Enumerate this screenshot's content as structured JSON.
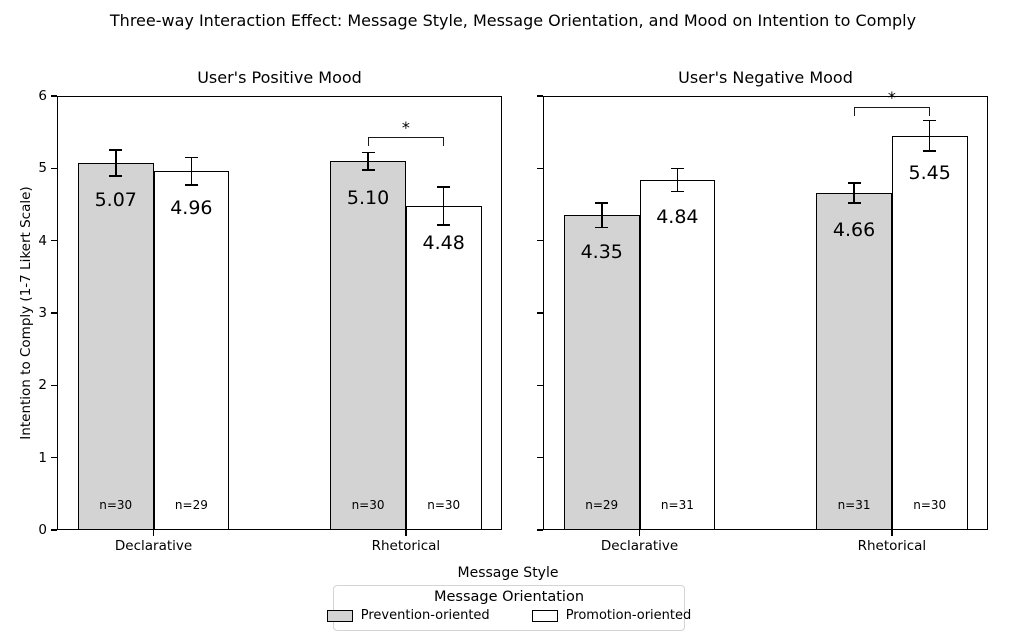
{
  "chart_data": {
    "type": "bar",
    "title": "Three-way Interaction Effect: Message Style, Message Orientation, and Mood on Intention to Comply",
    "xlabel": "Message Style",
    "ylabel": "Intention to Comply (1-7 Likert Scale)",
    "ylim": [
      0,
      6
    ],
    "yticks": [
      0,
      1,
      2,
      3,
      4,
      5,
      6
    ],
    "categories": [
      "Declarative",
      "Rhetorical"
    ],
    "grid": false,
    "legend": {
      "title": "Message Orientation",
      "position": "bottom-center",
      "entries": [
        {
          "label": "Prevention-oriented",
          "color": "#d3d3d3"
        },
        {
          "label": "Promotion-oriented",
          "color": "#ffffff"
        }
      ]
    },
    "panels": [
      {
        "title": "User's Positive Mood",
        "series": [
          {
            "name": "Prevention-oriented",
            "color": "#d3d3d3",
            "values": [
              5.07,
              5.1
            ],
            "errors": [
              0.18,
              0.12
            ],
            "sample_sizes": [
              "n=30",
              "n=30"
            ]
          },
          {
            "name": "Promotion-oriented",
            "color": "#ffffff",
            "values": [
              4.96,
              4.48
            ],
            "errors": [
              0.19,
              0.26
            ],
            "sample_sizes": [
              "n=29",
              "n=30"
            ]
          }
        ],
        "significance": {
          "category_index": 1,
          "label": "*",
          "bracket_y": 5.43
        }
      },
      {
        "title": "User's Negative Mood",
        "series": [
          {
            "name": "Prevention-oriented",
            "color": "#d3d3d3",
            "values": [
              4.35,
              4.66
            ],
            "errors": [
              0.17,
              0.14
            ],
            "sample_sizes": [
              "n=29",
              "n=31"
            ]
          },
          {
            "name": "Promotion-oriented",
            "color": "#ffffff",
            "values": [
              4.84,
              5.45
            ],
            "errors": [
              0.16,
              0.21
            ],
            "sample_sizes": [
              "n=31",
              "n=30"
            ]
          }
        ],
        "significance": {
          "category_index": 1,
          "label": "*",
          "bracket_y": 5.85
        }
      }
    ]
  }
}
